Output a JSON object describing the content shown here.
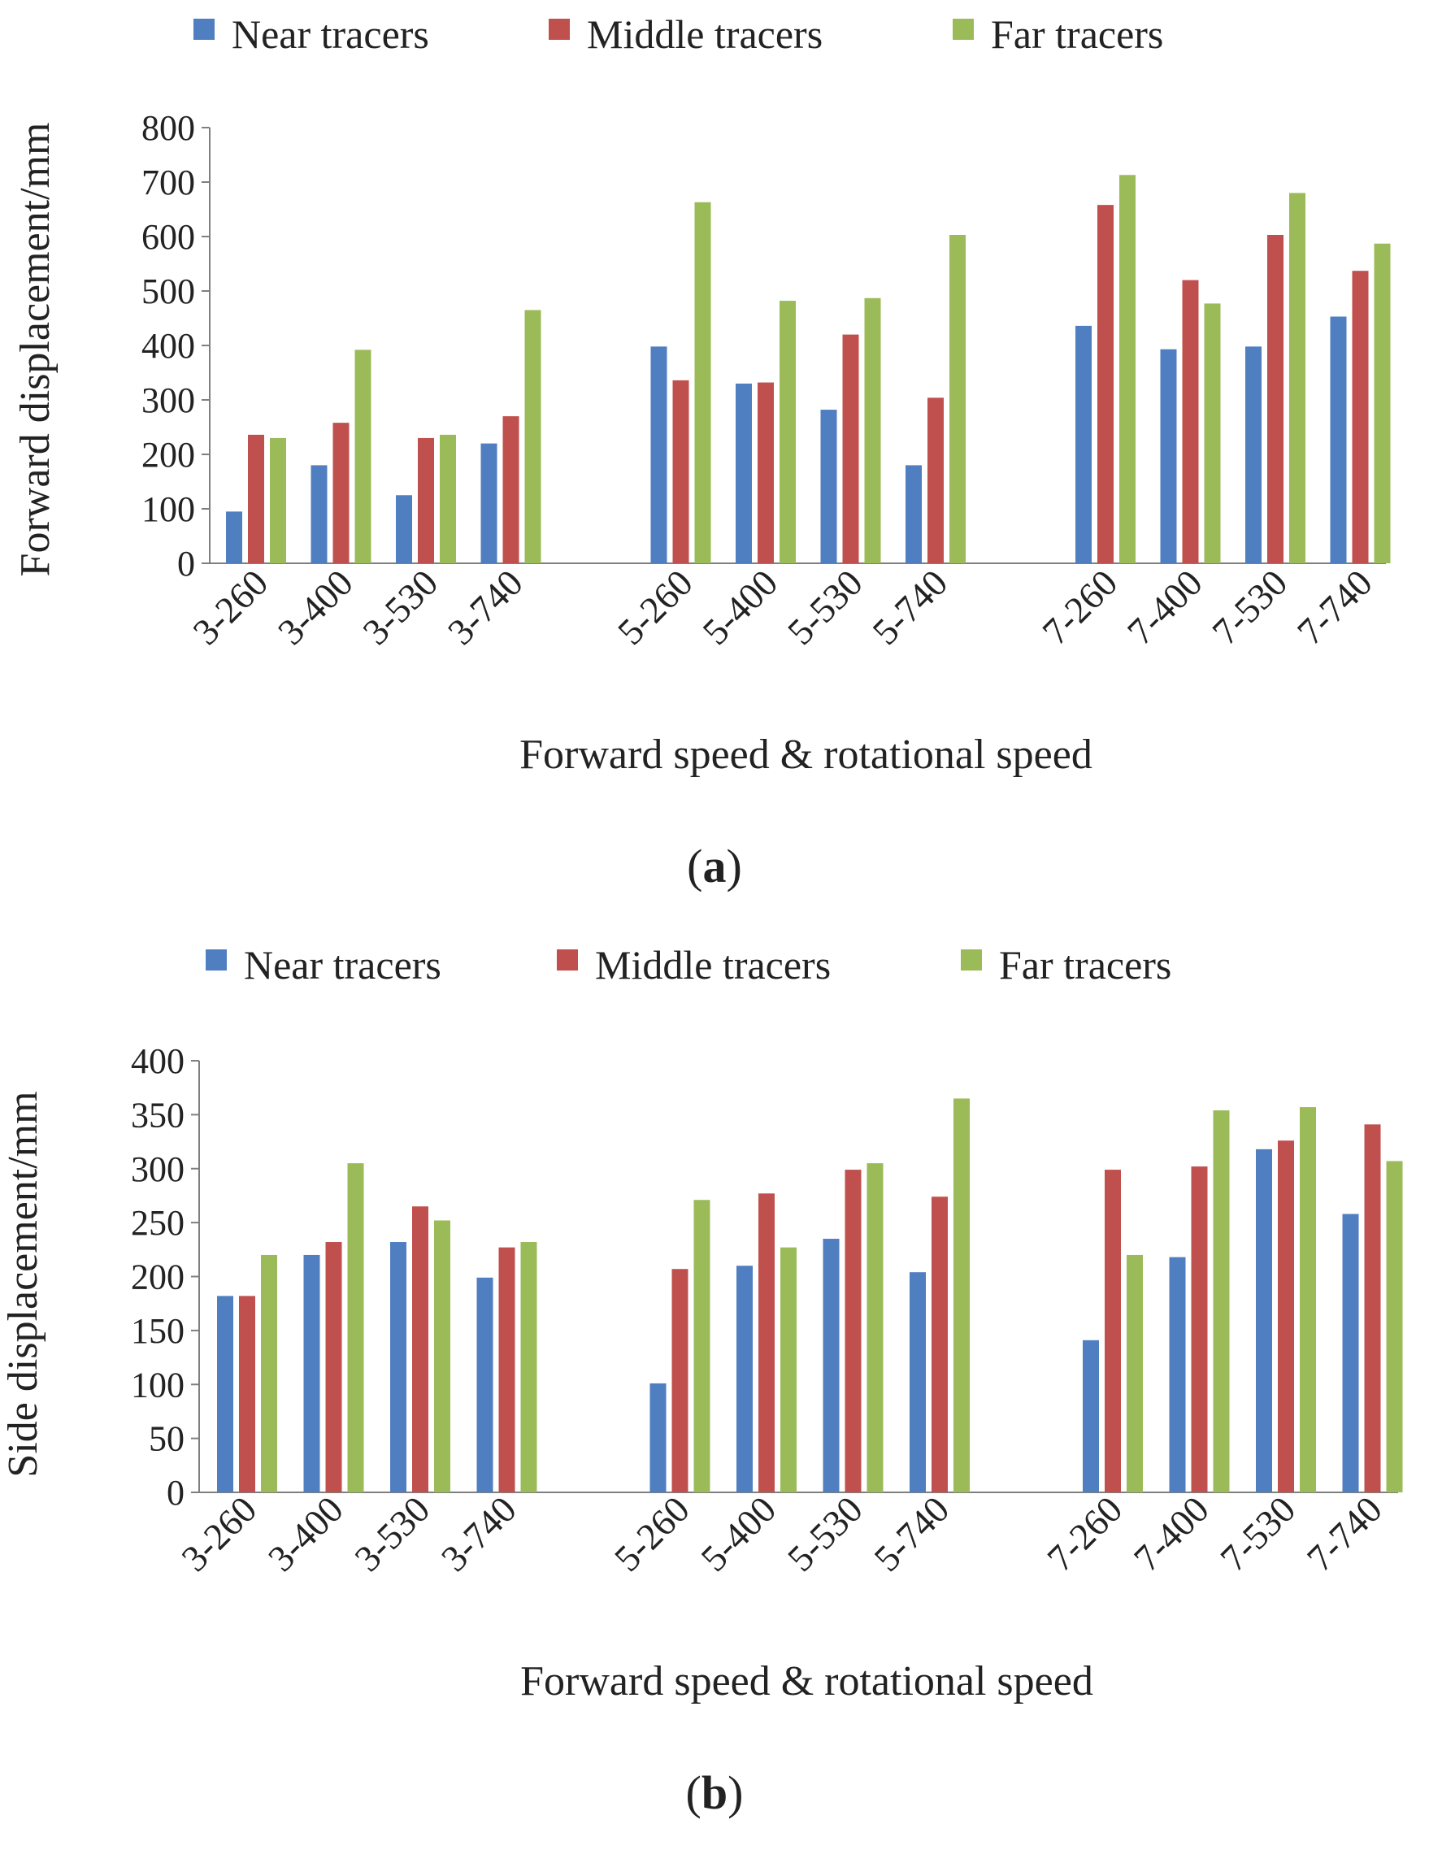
{
  "chart_data": [
    {
      "panel": "a",
      "type": "bar",
      "panel_label": "a",
      "title": "",
      "xlabel": "Forward speed & rotational speed",
      "ylabel": "Forward displacement/mm",
      "ylim": [
        0,
        800
      ],
      "yticks": [
        "0",
        "100",
        "200",
        "300",
        "400",
        "500",
        "600",
        "700",
        "800"
      ],
      "categories": [
        "3-260",
        "3-400",
        "3-530",
        "3-740",
        "",
        "5-260",
        "5-400",
        "5-530",
        "5-740",
        "",
        "7-260",
        "7-400",
        "7-530",
        "7-740"
      ],
      "legend_position": "top",
      "series": [
        {
          "name": "Near tracers",
          "color": "#4f7ec1",
          "values": [
            95,
            180,
            125,
            220,
            null,
            398,
            330,
            282,
            180,
            null,
            436,
            393,
            398,
            453
          ]
        },
        {
          "name": "Middle tracers",
          "color": "#c0504d",
          "values": [
            236,
            258,
            230,
            270,
            null,
            336,
            332,
            420,
            304,
            null,
            658,
            520,
            603,
            537
          ]
        },
        {
          "name": "Far tracers",
          "color": "#9bbb59",
          "values": [
            230,
            392,
            236,
            465,
            null,
            663,
            482,
            487,
            603,
            null,
            713,
            477,
            680,
            587
          ]
        }
      ]
    },
    {
      "panel": "b",
      "type": "bar",
      "panel_label": "b",
      "title": "",
      "xlabel": "Forward speed & rotational speed",
      "ylabel": "Side displacement/mm",
      "ylim": [
        0,
        400
      ],
      "yticks": [
        "0",
        "50",
        "100",
        "150",
        "200",
        "250",
        "300",
        "350",
        "400"
      ],
      "categories": [
        "3-260",
        "3-400",
        "3-530",
        "3-740",
        "",
        "5-260",
        "5-400",
        "5-530",
        "5-740",
        "",
        "7-260",
        "7-400",
        "7-530",
        "7-740"
      ],
      "legend_position": "top",
      "series": [
        {
          "name": "Near tracers",
          "color": "#4f7ec1",
          "values": [
            182,
            220,
            232,
            199,
            null,
            101,
            210,
            235,
            204,
            null,
            141,
            218,
            318,
            258
          ]
        },
        {
          "name": "Middle tracers",
          "color": "#c0504d",
          "values": [
            182,
            232,
            265,
            227,
            null,
            207,
            277,
            299,
            274,
            null,
            299,
            302,
            326,
            341
          ]
        },
        {
          "name": "Far tracers",
          "color": "#9bbb59",
          "values": [
            220,
            305,
            252,
            232,
            null,
            271,
            227,
            305,
            365,
            null,
            220,
            354,
            357,
            307
          ]
        }
      ]
    }
  ]
}
